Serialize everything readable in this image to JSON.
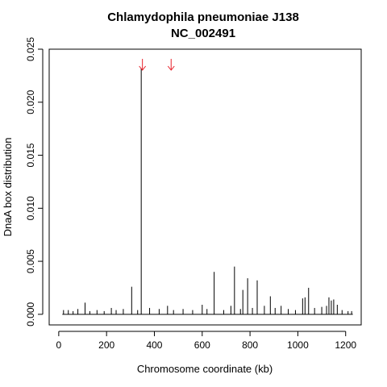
{
  "chart_data": {
    "type": "bar",
    "title": "Chlamydophila pneumoniae J138",
    "subtitle": "NC_002491",
    "xlabel": "Chromosome coordinate (kb)",
    "ylabel": "DnaA box distribution",
    "xlim": [
      -40,
      1265
    ],
    "ylim": [
      -0.001,
      0.025
    ],
    "xticks": [
      0,
      200,
      400,
      600,
      800,
      1000,
      1200
    ],
    "xtick_labels": [
      "0",
      "200",
      "400",
      "600",
      "800",
      "1000",
      "1200"
    ],
    "yticks": [
      0.0,
      0.005,
      0.01,
      0.015,
      0.02,
      0.025
    ],
    "ytick_labels": [
      "0.000",
      "0.005",
      "0.010",
      "0.015",
      "0.020",
      "0.025"
    ],
    "grid": false,
    "bar_color": "#000000",
    "marker_color": "#e8202a",
    "markers": [
      {
        "x": 350,
        "symbol": "down-arrow"
      },
      {
        "x": 470,
        "symbol": "down-arrow"
      }
    ],
    "series": [
      {
        "x": [
          20,
          40,
          60,
          80,
          110,
          130,
          160,
          190,
          220,
          240,
          270,
          305,
          330,
          345,
          380,
          420,
          455,
          480,
          520,
          560,
          600,
          620,
          650,
          690,
          720,
          735,
          760,
          770,
          790,
          810,
          830,
          860,
          885,
          905,
          930,
          960,
          990,
          1020,
          1030,
          1045,
          1070,
          1100,
          1120,
          1130,
          1140,
          1150,
          1165,
          1185,
          1210,
          1225
        ],
        "values": [
          0.0004,
          0.0004,
          0.0003,
          0.0005,
          0.0011,
          0.0003,
          0.0004,
          0.0003,
          0.0006,
          0.0004,
          0.0005,
          0.0026,
          0.0004,
          0.0232,
          0.0006,
          0.0005,
          0.0008,
          0.0004,
          0.0005,
          0.0004,
          0.0009,
          0.0005,
          0.004,
          0.0004,
          0.0008,
          0.0045,
          0.0005,
          0.0023,
          0.0034,
          0.0006,
          0.0032,
          0.0008,
          0.0017,
          0.0006,
          0.0008,
          0.0005,
          0.0004,
          0.0015,
          0.0016,
          0.0025,
          0.0006,
          0.0007,
          0.0008,
          0.0016,
          0.0013,
          0.0014,
          0.0009,
          0.0004,
          0.0003,
          0.0003
        ]
      }
    ]
  }
}
